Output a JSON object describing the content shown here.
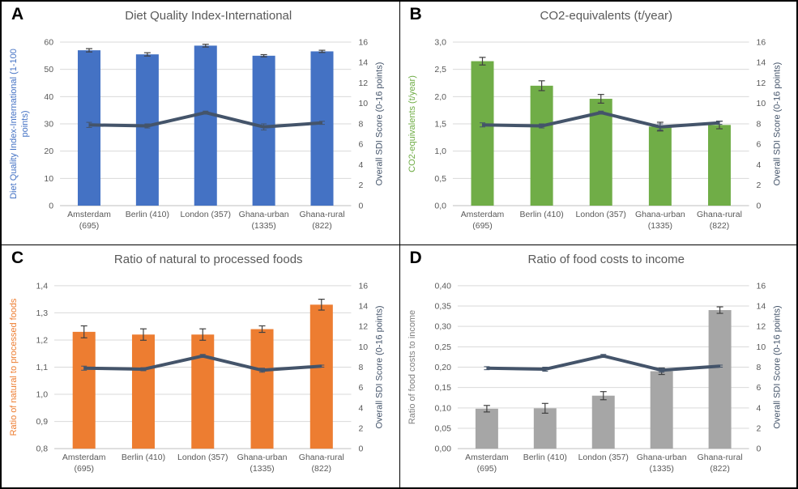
{
  "figure": {
    "border_color": "#000000",
    "background": "#ffffff",
    "gridline_color": "#d9d9d9",
    "axis_line_color": "#bfbfbf",
    "tick_text_color": "#595959",
    "title_text_color": "#595959",
    "error_bar_color": "#404040"
  },
  "shared": {
    "categories_flat": [
      "Amsterdam (695)",
      "Berlin (410)",
      "London (357)",
      "Ghana-urban (1335)",
      "Ghana-rural (822)"
    ],
    "sdi_line_name": "Overall SDI Score (0-16 points)",
    "sdi_line_color": "#44546a"
  },
  "chart_data": [
    {
      "type": "combo-bar-line",
      "panel": "A",
      "title": "Diet Quality Index-International",
      "categories": [
        [
          "Amsterdam",
          "(695)"
        ],
        [
          "Berlin (410)"
        ],
        [
          "London (357)"
        ],
        [
          "Ghana-urban",
          "(1335)"
        ],
        [
          "Ghana-rural",
          "(822)"
        ]
      ],
      "bar": {
        "name": "Diet Quality Index-International (1-100 points)",
        "color": "#4472c4",
        "values": [
          57.0,
          55.5,
          58.7,
          55.0,
          56.6
        ],
        "errors": [
          0.6,
          0.6,
          0.5,
          0.4,
          0.4
        ]
      },
      "line": {
        "name": "Overall SDI Score (0-16 points)",
        "color": "#44546a",
        "axis": "right",
        "values": [
          7.9,
          7.8,
          9.1,
          7.7,
          8.1
        ],
        "errors": [
          0.25,
          0.2,
          0.15,
          0.3,
          0.15
        ]
      },
      "left_axis": {
        "label": "Diet Quality Index-International (1-100 points)",
        "label_color": "#4472c4",
        "min": 0,
        "max": 60,
        "tick_labels": [
          "0",
          "10",
          "20",
          "30",
          "40",
          "50",
          "60"
        ]
      },
      "right_axis": {
        "label": "Overall SDI Score (0-16 points)",
        "label_color": "#44546a",
        "min": 0,
        "max": 16,
        "tick_labels": [
          "0",
          "2",
          "4",
          "6",
          "8",
          "10",
          "12",
          "14",
          "16"
        ]
      },
      "grid": true,
      "legend": "none"
    },
    {
      "type": "combo-bar-line",
      "panel": "B",
      "title": "CO2-equivalents (t/year)",
      "categories": [
        [
          "Amsterdam",
          "(695)"
        ],
        [
          "Berlin (410)"
        ],
        [
          "London (357)"
        ],
        [
          "Ghana-urban",
          "(1335)"
        ],
        [
          "Ghana-rural",
          "(822)"
        ]
      ],
      "bar": {
        "name": "CO2-equivalents (t/year)",
        "color": "#70ad47",
        "values": [
          2.65,
          2.2,
          1.96,
          1.45,
          1.48
        ],
        "errors": [
          0.07,
          0.09,
          0.08,
          0.08,
          0.07
        ]
      },
      "line": {
        "name": "Overall SDI Score (0-16 points)",
        "color": "#44546a",
        "axis": "right",
        "values": [
          7.9,
          7.8,
          9.1,
          7.7,
          8.1
        ],
        "errors": [
          0.2,
          0.2,
          0.15,
          0.3,
          0.15
        ]
      },
      "left_axis": {
        "label": "CO2-equivalents (t/year)",
        "label_color": "#70ad47",
        "min": 0,
        "max": 3,
        "tick_labels": [
          "0,0",
          "0,5",
          "1,0",
          "1,5",
          "2,0",
          "2,5",
          "3,0"
        ]
      },
      "right_axis": {
        "label": "Overall SDI Score (0-16 points)",
        "label_color": "#44546a",
        "min": 0,
        "max": 16,
        "tick_labels": [
          "0",
          "2",
          "4",
          "6",
          "8",
          "10",
          "12",
          "14",
          "16"
        ]
      },
      "grid": true,
      "legend": "none"
    },
    {
      "type": "combo-bar-line",
      "panel": "C",
      "title": "Ratio of natural to processed foods",
      "categories": [
        [
          "Amsterdam",
          "(695)"
        ],
        [
          "Berlin (410)"
        ],
        [
          "London (357)"
        ],
        [
          "Ghana-urban",
          "(1335)"
        ],
        [
          "Ghana-rural",
          "(822)"
        ]
      ],
      "bar": {
        "name": "Ratio of natural to processed foods",
        "color": "#ed7d31",
        "values": [
          1.23,
          1.22,
          1.22,
          1.24,
          1.33
        ],
        "errors": [
          0.022,
          0.021,
          0.021,
          0.012,
          0.02
        ]
      },
      "line": {
        "name": "Overall SDI Score (0-16 points)",
        "color": "#44546a",
        "axis": "right",
        "values": [
          7.9,
          7.8,
          9.1,
          7.7,
          8.1
        ],
        "errors": [
          0.2,
          0.15,
          0.15,
          0.2,
          0.1
        ]
      },
      "left_axis": {
        "label": "Ratio of natural to processed foods",
        "label_color": "#ed7d31",
        "min": 0.8,
        "max": 1.4,
        "tick_labels": [
          "0,8",
          "0,9",
          "1,0",
          "1,1",
          "1,2",
          "1,3",
          "1,4"
        ]
      },
      "right_axis": {
        "label": "Overall SDI Score (0-16 points)",
        "label_color": "#44546a",
        "min": 0,
        "max": 16,
        "tick_labels": [
          "0",
          "2",
          "4",
          "6",
          "8",
          "10",
          "12",
          "14",
          "16"
        ]
      },
      "grid": true,
      "legend": "none"
    },
    {
      "type": "combo-bar-line",
      "panel": "D",
      "title": "Ratio of food costs to income",
      "categories": [
        [
          "Amsterdam",
          "(695)"
        ],
        [
          "Berlin (410)"
        ],
        [
          "London (357)"
        ],
        [
          "Ghana-urban",
          "(1335)"
        ],
        [
          "Ghana-rural",
          "(822)"
        ]
      ],
      "bar": {
        "name": "Ratio of food costs to income",
        "color": "#a6a6a6",
        "values": [
          0.098,
          0.099,
          0.13,
          0.19,
          0.34
        ],
        "errors": [
          0.008,
          0.012,
          0.01,
          0.008,
          0.008
        ]
      },
      "line": {
        "name": "Overall SDI Score (0-16 points)",
        "color": "#44546a",
        "axis": "right",
        "values": [
          7.9,
          7.8,
          9.1,
          7.7,
          8.1
        ],
        "errors": [
          0.15,
          0.2,
          0.15,
          0.2,
          0.1
        ]
      },
      "left_axis": {
        "label": "Ratio of food costs to income",
        "label_color": "#7f7f7f",
        "min": 0,
        "max": 0.4,
        "tick_labels": [
          "0,00",
          "0,05",
          "0,10",
          "0,15",
          "0,20",
          "0,25",
          "0,30",
          "0,35",
          "0,40"
        ]
      },
      "right_axis": {
        "label": "Overall SDI Score (0-16 points)",
        "label_color": "#44546a",
        "min": 0,
        "max": 16,
        "tick_labels": [
          "0",
          "2",
          "4",
          "6",
          "8",
          "10",
          "12",
          "14",
          "16"
        ]
      },
      "grid": true,
      "legend": "none"
    }
  ]
}
